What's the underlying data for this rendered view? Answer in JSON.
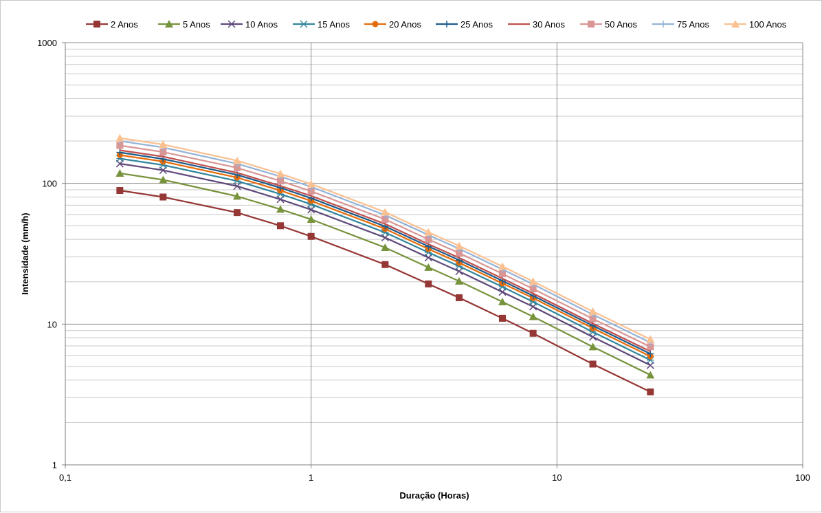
{
  "chart_data": {
    "type": "line",
    "xscale": "log",
    "yscale": "log",
    "xlabel": "Duração (Horas)",
    "ylabel": "Intensidade (mm/h)",
    "xlim": [
      0.1,
      100
    ],
    "ylim": [
      1,
      1000
    ],
    "grid": true,
    "legend_position": "top",
    "x_tick_labels": [
      "0,1",
      "1",
      "10",
      "100"
    ],
    "y_tick_labels": [
      "1",
      "10",
      "100",
      "1000"
    ],
    "x": [
      0.1667,
      0.25,
      0.5,
      0.75,
      1,
      2,
      3,
      4,
      6,
      8,
      14,
      24
    ],
    "series": [
      {
        "name": "2 Anos",
        "color": "#953735",
        "marker": "square",
        "values": [
          89,
          80,
          62,
          50,
          42,
          26.5,
          19.3,
          15.4,
          11,
          8.6,
          5.2,
          3.3
        ]
      },
      {
        "name": "5 Anos",
        "color": "#77933c",
        "marker": "triangle",
        "values": [
          118,
          106,
          81,
          65.5,
          55.5,
          35,
          25.3,
          20.2,
          14.4,
          11.3,
          6.9,
          4.35
        ]
      },
      {
        "name": "10 Anos",
        "color": "#5f497a",
        "marker": "x",
        "values": [
          138,
          124,
          95.5,
          77,
          65,
          41.2,
          29.7,
          23.7,
          16.9,
          13.3,
          8.1,
          5.1
        ]
      },
      {
        "name": "15 Anos",
        "color": "#31859c",
        "marker": "star",
        "values": [
          150,
          135,
          104,
          84,
          71,
          44.8,
          32.3,
          25.8,
          18.4,
          14.4,
          8.8,
          5.55
        ]
      },
      {
        "name": "20 Anos",
        "color": "#e46c0a",
        "marker": "circle",
        "values": [
          159,
          143,
          110,
          89,
          75,
          47.5,
          34.2,
          27.3,
          19.5,
          15.3,
          9.35,
          5.9
        ]
      },
      {
        "name": "25 Anos",
        "color": "#1f5c8b",
        "marker": "plus",
        "values": [
          166,
          149,
          115,
          93,
          78.5,
          49.5,
          35.7,
          28.5,
          20.3,
          15.9,
          9.75,
          6.15
        ]
      },
      {
        "name": "30 Anos",
        "color": "#c0504d",
        "marker": "none",
        "values": [
          172,
          155,
          119,
          96,
          81.5,
          51.5,
          37,
          29.6,
          21.1,
          16.5,
          10.1,
          6.4
        ]
      },
      {
        "name": "50 Anos",
        "color": "#d99694",
        "marker": "square",
        "values": [
          186,
          167,
          129,
          104,
          88,
          55.5,
          40,
          32,
          22.8,
          17.8,
          10.9,
          6.9
        ]
      },
      {
        "name": "75 Anos",
        "color": "#95b3d7",
        "marker": "plus",
        "values": [
          200,
          180,
          138,
          112,
          94.5,
          59.5,
          43,
          34.3,
          24.5,
          19.2,
          11.7,
          7.4
        ]
      },
      {
        "name": "100 Anos",
        "color": "#fac090",
        "marker": "triangle",
        "values": [
          210,
          189,
          145,
          117,
          99,
          62.5,
          45,
          36,
          25.7,
          20.1,
          12.3,
          7.8
        ]
      }
    ]
  }
}
